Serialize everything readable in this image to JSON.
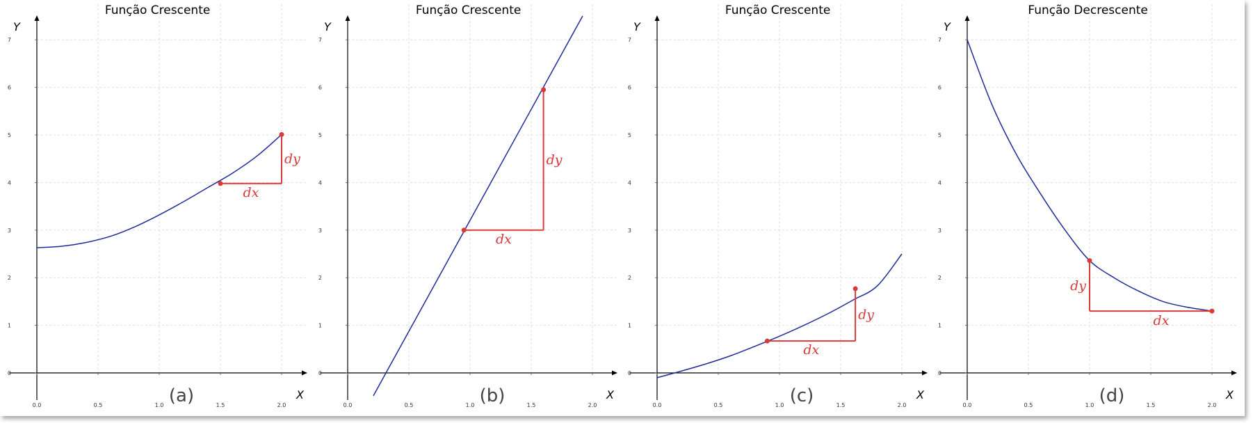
{
  "chart_data": [
    {
      "type": "line",
      "title": "Função Crescente",
      "tag": "(a)",
      "xlabel": "X",
      "ylabel": "Y",
      "xlim": [
        0,
        2.2
      ],
      "ylim": [
        -0.5,
        7.6
      ],
      "xticks": [
        "0.0",
        "0.5",
        "1.0",
        "1.5",
        "2.0"
      ],
      "yticks": [
        "0",
        "1",
        "2",
        "3",
        "4",
        "5",
        "6",
        "7"
      ],
      "grid": true,
      "curve": {
        "x": [
          0,
          0.2,
          0.4,
          0.6,
          0.8,
          1.0,
          1.2,
          1.4,
          1.6,
          1.8,
          2.0
        ],
        "y": [
          2.63,
          2.66,
          2.74,
          2.87,
          3.07,
          3.32,
          3.6,
          3.9,
          4.2,
          4.56,
          5.01
        ]
      },
      "p1": {
        "x": 1.5,
        "y": 3.98
      },
      "p2": {
        "x": 2.0,
        "y": 5.01
      },
      "dx_label": "dx",
      "dy_label": "dy"
    },
    {
      "type": "line",
      "title": "Função Crescente",
      "tag": "(b)",
      "xlabel": "X",
      "ylabel": "Y",
      "xlim": [
        0,
        2.2
      ],
      "ylim": [
        -0.5,
        7.6
      ],
      "xticks": [
        "0.0",
        "0.5",
        "1.0",
        "1.5",
        "2.0"
      ],
      "yticks": [
        "0",
        "1",
        "2",
        "3",
        "4",
        "5",
        "6",
        "7"
      ],
      "grid": true,
      "curve": {
        "x": [
          0.21,
          1.92
        ],
        "y": [
          -0.48,
          7.5
        ]
      },
      "p1": {
        "x": 0.95,
        "y": 3.0
      },
      "p2": {
        "x": 1.6,
        "y": 5.95
      },
      "dx_label": "dx",
      "dy_label": "dy"
    },
    {
      "type": "line",
      "title": "Função Crescente",
      "tag": "(c)",
      "xlabel": "X",
      "ylabel": "Y",
      "xlim": [
        0,
        2.2
      ],
      "ylim": [
        -0.5,
        7.6
      ],
      "xticks": [
        "0.0",
        "0.5",
        "1.0",
        "1.5",
        "2.0"
      ],
      "yticks": [
        "0",
        "1",
        "2",
        "3",
        "4",
        "5",
        "6",
        "7"
      ],
      "grid": true,
      "curve": {
        "x": [
          0,
          0.2,
          0.4,
          0.6,
          0.8,
          1.0,
          1.2,
          1.4,
          1.6,
          1.8,
          2.0
        ],
        "y": [
          -0.1,
          0.04,
          0.19,
          0.36,
          0.56,
          0.77,
          1.0,
          1.25,
          1.53,
          1.83,
          2.5
        ]
      },
      "p1": {
        "x": 0.9,
        "y": 0.67
      },
      "p2": {
        "x": 1.62,
        "y": 1.77
      },
      "dx_label": "dx",
      "dy_label": "dy"
    },
    {
      "type": "line",
      "title": "Função Decrescente",
      "tag": "(d)",
      "xlabel": "X",
      "ylabel": "Y",
      "xlim": [
        0,
        2.2
      ],
      "ylim": [
        -0.5,
        7.6
      ],
      "xticks": [
        "0.0",
        "0.5",
        "1.0",
        "1.5",
        "2.0"
      ],
      "yticks": [
        "0",
        "1",
        "2",
        "3",
        "4",
        "5",
        "6",
        "7"
      ],
      "grid": true,
      "curve": {
        "x": [
          0,
          0.2,
          0.4,
          0.6,
          0.8,
          1.0,
          1.2,
          1.4,
          1.6,
          1.8,
          2.0
        ],
        "y": [
          7.0,
          5.65,
          4.6,
          3.76,
          3.0,
          2.36,
          2.0,
          1.72,
          1.5,
          1.38,
          1.3
        ]
      },
      "p1": {
        "x": 1.0,
        "y": 2.36
      },
      "p2": {
        "x": 2.0,
        "y": 1.3
      },
      "dx_label": "dx",
      "dy_label": "dy"
    }
  ],
  "colors": {
    "curve": "#1f2a9a",
    "marker": "#d83a3a",
    "axis": "#000000",
    "grid": "#dddddd"
  }
}
